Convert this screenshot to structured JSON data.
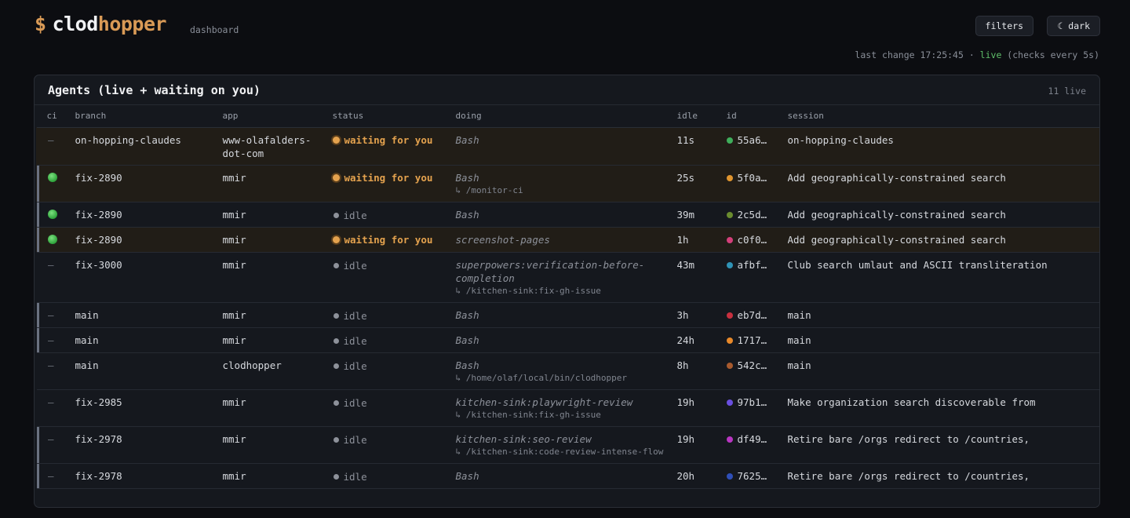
{
  "app": {
    "logo_dollar": "$",
    "logo_part1": "clod",
    "logo_part2": "hopper",
    "subtitle": "dashboard"
  },
  "buttons": {
    "filters": "filters",
    "dark": "☾ dark"
  },
  "status_line": {
    "prefix": "last change 17:25:45 · ",
    "live": "live",
    "suffix": " (checks every 5s)"
  },
  "panel": {
    "title": "Agents (live + waiting on you)",
    "count": "11 live"
  },
  "columns": [
    "ci",
    "branch",
    "app",
    "status",
    "doing",
    "idle",
    "id",
    "session"
  ],
  "colors": {
    "accent": "#d99a56",
    "waiting": "#e4a24e",
    "live": "#5fbf6a",
    "ci_pass": "#3fb64b"
  },
  "rows": [
    {
      "ci": "—",
      "branch": "on-hopping-claudes",
      "app": "www-olafalders-dot-com",
      "status": "waiting for you",
      "doing": "Bash",
      "doing_sub": "",
      "idle": "11s",
      "id": "55a6…",
      "id_color": "#3fae5b",
      "session": "on-hopping-claudes"
    },
    {
      "ci": "pass",
      "branch": "fix-2890",
      "app": "mmir",
      "status": "waiting for you",
      "doing": "Bash",
      "doing_sub": "↳ /monitor-ci",
      "idle": "25s",
      "id": "5f0a…",
      "id_color": "#e0952f",
      "session": "Add geographically-constrained search"
    },
    {
      "ci": "pass",
      "branch": "fix-2890",
      "app": "mmir",
      "status": "idle",
      "doing": "Bash",
      "doing_sub": "",
      "idle": "39m",
      "id": "2c5d…",
      "id_color": "#6a8c2f",
      "session": "Add geographically-constrained search"
    },
    {
      "ci": "pass",
      "branch": "fix-2890",
      "app": "mmir",
      "status": "waiting for you",
      "doing": "screenshot-pages",
      "doing_sub": "",
      "idle": "1h",
      "id": "c0f0…",
      "id_color": "#d33f7a",
      "session": "Add geographically-constrained search"
    },
    {
      "ci": "—",
      "branch": "fix-3000",
      "app": "mmir",
      "status": "idle",
      "doing": "superpowers:verification-before-completion",
      "doing_sub": "↳ /kitchen-sink:fix-gh-issue",
      "idle": "43m",
      "id": "afbf…",
      "id_color": "#2f93b6",
      "session": "Club search umlaut and ASCII transliteration"
    },
    {
      "ci": "—",
      "branch": "main",
      "app": "mmir",
      "status": "idle",
      "doing": "Bash",
      "doing_sub": "",
      "idle": "3h",
      "id": "eb7d…",
      "id_color": "#c8303f",
      "session": "main"
    },
    {
      "ci": "—",
      "branch": "main",
      "app": "mmir",
      "status": "idle",
      "doing": "Bash",
      "doing_sub": "",
      "idle": "24h",
      "id": "1717…",
      "id_color": "#e8892a",
      "session": "main"
    },
    {
      "ci": "—",
      "branch": "main",
      "app": "clodhopper",
      "status": "idle",
      "doing": "Bash",
      "doing_sub": "↳ /home/olaf/local/bin/clodhopper",
      "idle": "8h",
      "id": "542c…",
      "id_color": "#a85a2e",
      "session": "main"
    },
    {
      "ci": "—",
      "branch": "fix-2985",
      "app": "mmir",
      "status": "idle",
      "doing": "kitchen-sink:playwright-review",
      "doing_sub": "↳ /kitchen-sink:fix-gh-issue",
      "idle": "19h",
      "id": "97b1…",
      "id_color": "#6a4fe0",
      "session": "Make organization search discoverable from"
    },
    {
      "ci": "—",
      "branch": "fix-2978",
      "app": "mmir",
      "status": "idle",
      "doing": "kitchen-sink:seo-review",
      "doing_sub": "↳ /kitchen-sink:code-review-intense-flow",
      "idle": "19h",
      "id": "df49…",
      "id_color": "#b836c2",
      "session": "Retire bare /orgs redirect to /countries,"
    },
    {
      "ci": "—",
      "branch": "fix-2978",
      "app": "mmir",
      "status": "idle",
      "doing": "Bash",
      "doing_sub": "",
      "idle": "20h",
      "id": "7625…",
      "id_color": "#2f4fb8",
      "session": "Retire bare /orgs redirect to /countries,"
    }
  ]
}
